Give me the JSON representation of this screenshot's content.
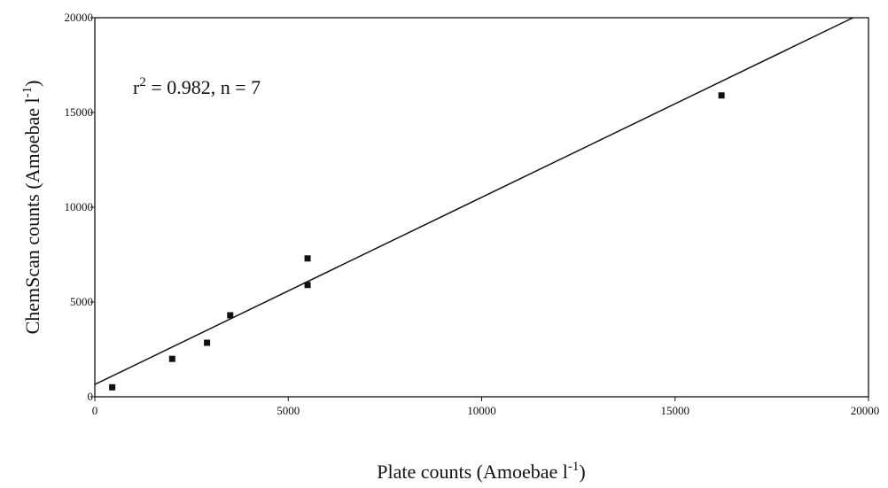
{
  "chart_data": {
    "type": "scatter",
    "xlabel": "Plate counts (Amoebae l",
    "xlabel_sup": "-1",
    "xlabel_end": ")",
    "ylabel": "ChemScan counts (Amoebae l",
    "ylabel_sup": "-1",
    "ylabel_end": ")",
    "xlim": [
      0,
      20000
    ],
    "ylim": [
      0,
      20000
    ],
    "xticks": [
      "0",
      "5000",
      "10000",
      "15000",
      "20000"
    ],
    "yticks": [
      "0",
      "5000",
      "10000",
      "15000",
      "20000"
    ],
    "annotation": {
      "r": "r",
      "r_sup": "2",
      "rest": " = 0.982, n = 7"
    },
    "points": [
      {
        "x": 450,
        "y": 500
      },
      {
        "x": 2000,
        "y": 2000
      },
      {
        "x": 2900,
        "y": 2850
      },
      {
        "x": 3500,
        "y": 4300
      },
      {
        "x": 5500,
        "y": 5900
      },
      {
        "x": 5500,
        "y": 7300
      },
      {
        "x": 16200,
        "y": 15900
      }
    ],
    "regression_line": {
      "x": [
        0,
        19600
      ],
      "y": [
        650,
        20000
      ]
    },
    "grid": false,
    "colors": {
      "marker": "#111111",
      "line": "#111111",
      "axis": "#111111"
    }
  }
}
